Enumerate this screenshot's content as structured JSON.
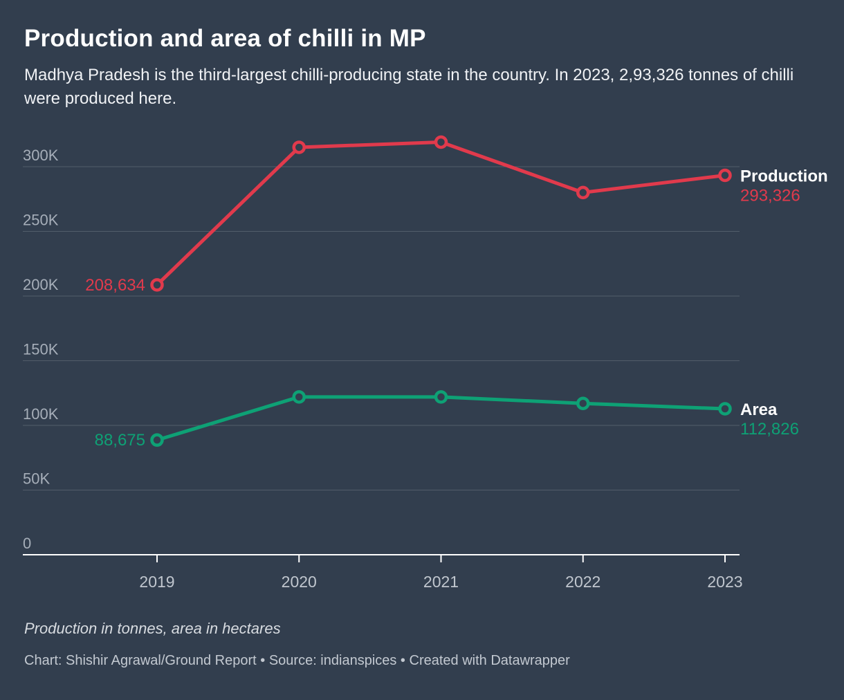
{
  "page": {
    "background_color": "#323e4e"
  },
  "header": {
    "title": "Production and area of chilli in MP",
    "subtitle": "Madhya Pradesh is the third-largest chilli-producing state in the country. In 2023, 2,93,326 tonnes of chilli were produced here."
  },
  "footer": {
    "note": "Production in tonnes, area in hectares",
    "byline": "Chart: Shishir Agrawal/Ground Report • Source: indianspices • Created with Datawrapper"
  },
  "chart_data": {
    "type": "line",
    "title": "Production and area of chilli in MP",
    "categories": [
      "2019",
      "2020",
      "2021",
      "2022",
      "2023"
    ],
    "series": [
      {
        "name": "Production",
        "color": "#e13a4c",
        "values": [
          208634,
          315000,
          319000,
          280000,
          293326
        ],
        "first_point_label": "208,634",
        "end_value_label": "293,326"
      },
      {
        "name": "Area",
        "color": "#0ea175",
        "values": [
          88675,
          122000,
          122000,
          117000,
          112826
        ],
        "first_point_label": "88,675",
        "end_value_label": "112,826"
      }
    ],
    "y_ticks": [
      {
        "value": 0,
        "label": "0"
      },
      {
        "value": 50000,
        "label": "50K"
      },
      {
        "value": 100000,
        "label": "100K"
      },
      {
        "value": 150000,
        "label": "150K"
      },
      {
        "value": 200000,
        "label": "200K"
      },
      {
        "value": 250000,
        "label": "250K"
      },
      {
        "value": 300000,
        "label": "300K"
      }
    ],
    "ylim": [
      0,
      320000
    ],
    "xlabel": "",
    "ylabel": "",
    "grid": "horizontal",
    "legend_position": "right-of-line-end",
    "colors": {
      "grid": "rgba(255,255,255,0.16)",
      "axis": "#ffffff",
      "y_tick_label": "#a6aeb9",
      "x_tick_label": "#c0c6ce",
      "series_name_label": "#ffffff",
      "marker_fill": "#323e4e"
    }
  }
}
